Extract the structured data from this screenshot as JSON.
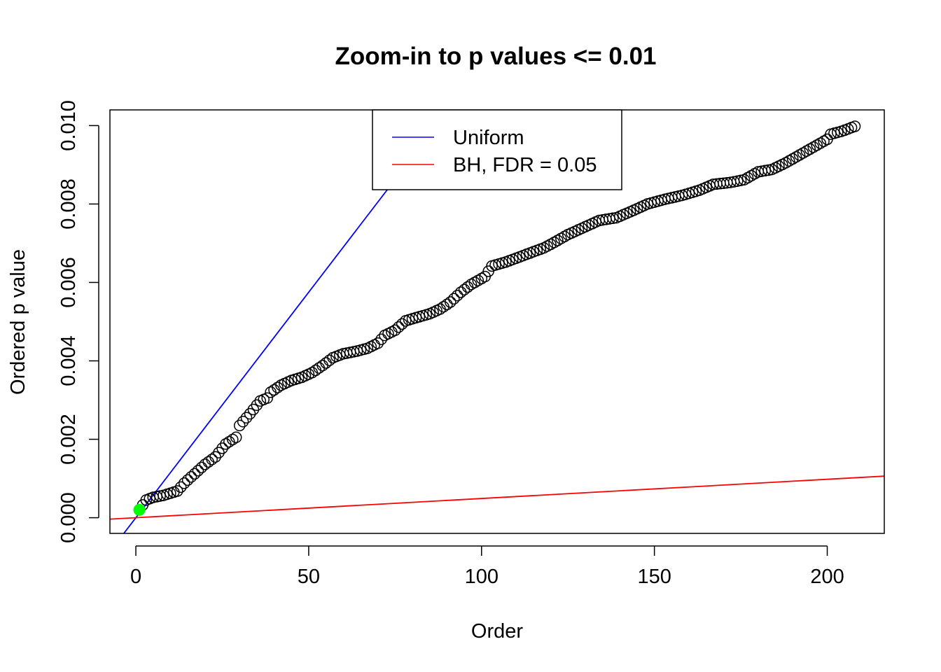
{
  "chart_data": {
    "type": "scatter",
    "title": "Zoom-in to p values <= 0.01",
    "xlabel": "Order",
    "ylabel": "Ordered p value",
    "xlim": [
      -7.5,
      216.5
    ],
    "ylim": [
      -0.0004,
      0.0104
    ],
    "x_ticks": [
      "0",
      "50",
      "100",
      "150",
      "200"
    ],
    "y_ticks": [
      "0.000",
      "0.002",
      "0.004",
      "0.006",
      "0.008",
      "0.010"
    ],
    "grid": false,
    "legend_position": "top-center",
    "legend": [
      {
        "label": "Uniform",
        "color": "#0000ff"
      },
      {
        "label": "BH, FDR = 0.05",
        "color": "#ff0000"
      }
    ],
    "reference_lines": [
      {
        "name": "Uniform",
        "color": "#0000ff",
        "intercept": 0,
        "slope": 0.000115
      },
      {
        "name": "BH, FDR = 0.05",
        "color": "#ff0000",
        "intercept": 0,
        "slope": 4.9e-06
      }
    ],
    "highlight_point": {
      "x": 1,
      "y": 0.0002,
      "color": "#00ff00"
    },
    "points_knots": [
      [
        1,
        0.0002
      ],
      [
        3,
        0.00045
      ],
      [
        5,
        0.00052
      ],
      [
        8,
        0.00057
      ],
      [
        12,
        0.00068
      ],
      [
        14,
        0.00088
      ],
      [
        17,
        0.00112
      ],
      [
        20,
        0.00136
      ],
      [
        23,
        0.00155
      ],
      [
        26,
        0.00188
      ],
      [
        29,
        0.00205
      ],
      [
        30,
        0.00235
      ],
      [
        33,
        0.00265
      ],
      [
        36,
        0.00298
      ],
      [
        38,
        0.00305
      ],
      [
        39,
        0.0032
      ],
      [
        42,
        0.00338
      ],
      [
        45,
        0.0035
      ],
      [
        48,
        0.00358
      ],
      [
        51,
        0.0037
      ],
      [
        54,
        0.00388
      ],
      [
        57,
        0.00408
      ],
      [
        60,
        0.00418
      ],
      [
        64,
        0.00425
      ],
      [
        67,
        0.00432
      ],
      [
        70,
        0.00445
      ],
      [
        72,
        0.00465
      ],
      [
        75,
        0.00478
      ],
      [
        78,
        0.00502
      ],
      [
        81,
        0.0051
      ],
      [
        85,
        0.0052
      ],
      [
        88,
        0.00532
      ],
      [
        91,
        0.0055
      ],
      [
        94,
        0.00575
      ],
      [
        97,
        0.00595
      ],
      [
        101,
        0.00615
      ],
      [
        103,
        0.00642
      ],
      [
        107,
        0.00652
      ],
      [
        111,
        0.00665
      ],
      [
        114,
        0.00675
      ],
      [
        118,
        0.00688
      ],
      [
        121,
        0.00702
      ],
      [
        125,
        0.00722
      ],
      [
        129,
        0.00738
      ],
      [
        134,
        0.00758
      ],
      [
        139,
        0.00765
      ],
      [
        143,
        0.0078
      ],
      [
        148,
        0.008
      ],
      [
        153,
        0.00812
      ],
      [
        158,
        0.00822
      ],
      [
        163,
        0.00835
      ],
      [
        167,
        0.0085
      ],
      [
        172,
        0.00855
      ],
      [
        176,
        0.00862
      ],
      [
        178,
        0.00872
      ],
      [
        180,
        0.00882
      ],
      [
        184,
        0.00888
      ],
      [
        188,
        0.00905
      ],
      [
        192,
        0.00925
      ],
      [
        196,
        0.00945
      ],
      [
        200,
        0.00965
      ],
      [
        201,
        0.00978
      ],
      [
        204,
        0.00985
      ],
      [
        208,
        0.00998
      ]
    ]
  }
}
